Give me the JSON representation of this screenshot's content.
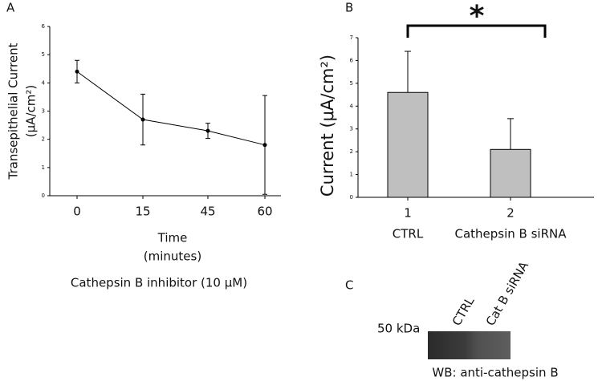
{
  "chart_data": [
    {
      "type": "line",
      "panel_label": "A",
      "categories": [
        "0",
        "15",
        "45",
        "60"
      ],
      "values": [
        4.4,
        2.7,
        2.3,
        1.8
      ],
      "errors": [
        0.4,
        0.9,
        0.27,
        1.75
      ],
      "color": "#000000",
      "ylim": [
        0,
        6
      ],
      "yticks": [
        0,
        1,
        2,
        3,
        4,
        5,
        6
      ],
      "ylabel": [
        "Transepithelial Current",
        "(μA/cm²)"
      ],
      "xlabel": [
        "Time",
        "(minutes)"
      ],
      "note": "Cathepsin B inhibitor (10 μM)"
    },
    {
      "type": "bar",
      "panel_label": "B",
      "categories": [
        "1",
        "2"
      ],
      "category_labels": [
        "CTRL",
        "Cathepsin B siRNA"
      ],
      "values": [
        4.6,
        2.1
      ],
      "errors": [
        1.8,
        1.35
      ],
      "color": "#bfbfbf",
      "ylim": [
        0,
        7
      ],
      "yticks": [
        0,
        1,
        2,
        3,
        4,
        5,
        6,
        7
      ],
      "ylabel": "Current (μA/cm²)",
      "annotation": "*"
    }
  ],
  "blot": {
    "panel_label": "C",
    "lanes": [
      "CTRL",
      "Cat B siRNA"
    ],
    "marker": "50 kDa",
    "caption": "WB:  anti-cathepsin B"
  }
}
